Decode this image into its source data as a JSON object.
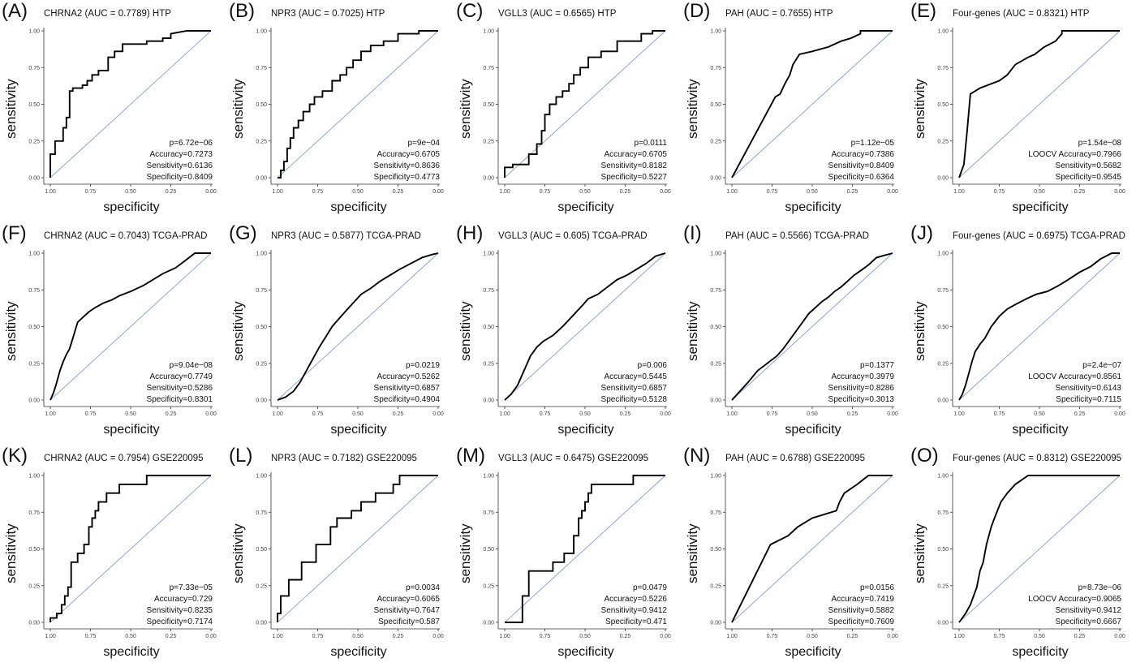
{
  "axes": {
    "xlabel": "specificity",
    "ylabel": "sensitivity",
    "xticks": [
      "1.00",
      "0.75",
      "0.50",
      "0.25",
      "0.00"
    ],
    "yticks": [
      "0.00",
      "0.25",
      "0.50",
      "0.75",
      "1.00"
    ]
  },
  "chart_data": [
    {
      "type": "line",
      "letter": "(A)",
      "title": "CHRNA2 (AUC = 0.7789) HTP",
      "xlabel": "specificity",
      "ylabel": "sensitivity",
      "xlim": [
        1,
        0
      ],
      "ylim": [
        0,
        1
      ],
      "stats": [
        "p=6.72e−06",
        "Accuracy=0.7273",
        "Sensitivity=0.6136",
        "Specificity=0.8409"
      ],
      "fpr": [
        0,
        0,
        0.03,
        0.03,
        0.08,
        0.08,
        0.1,
        0.1,
        0.12,
        0.12,
        0.14,
        0.14,
        0.2,
        0.2,
        0.23,
        0.23,
        0.26,
        0.26,
        0.3,
        0.3,
        0.36,
        0.36,
        0.4,
        0.4,
        0.45,
        0.45,
        0.6,
        0.6,
        0.7,
        0.7,
        0.75,
        0.75,
        0.85,
        1
      ],
      "tpr": [
        0,
        0.16,
        0.16,
        0.25,
        0.25,
        0.34,
        0.34,
        0.41,
        0.41,
        0.59,
        0.59,
        0.61,
        0.61,
        0.63,
        0.63,
        0.66,
        0.66,
        0.7,
        0.7,
        0.73,
        0.73,
        0.82,
        0.82,
        0.86,
        0.86,
        0.91,
        0.91,
        0.93,
        0.93,
        0.95,
        0.95,
        0.98,
        1,
        1
      ]
    },
    {
      "type": "line",
      "letter": "(B)",
      "title": "NPR3 (AUC = 0.7025) HTP",
      "xlabel": "specificity",
      "ylabel": "sensitivity",
      "xlim": [
        1,
        0
      ],
      "ylim": [
        0,
        1
      ],
      "stats": [
        "p=9e−04",
        "Accuracy=0.6705",
        "Sensitivity=0.8636",
        "Specificity=0.4773"
      ],
      "fpr": [
        0,
        0.02,
        0.02,
        0.04,
        0.04,
        0.06,
        0.06,
        0.08,
        0.08,
        0.1,
        0.1,
        0.13,
        0.13,
        0.16,
        0.16,
        0.2,
        0.2,
        0.23,
        0.23,
        0.28,
        0.28,
        0.34,
        0.34,
        0.39,
        0.39,
        0.43,
        0.43,
        0.47,
        0.47,
        0.52,
        0.52,
        0.58,
        0.58,
        0.66,
        0.66,
        0.75,
        0.75,
        0.88,
        0.88,
        1
      ],
      "tpr": [
        0,
        0,
        0.05,
        0.05,
        0.11,
        0.11,
        0.2,
        0.2,
        0.27,
        0.27,
        0.34,
        0.34,
        0.39,
        0.39,
        0.45,
        0.45,
        0.5,
        0.5,
        0.55,
        0.55,
        0.59,
        0.59,
        0.66,
        0.66,
        0.7,
        0.7,
        0.75,
        0.75,
        0.8,
        0.8,
        0.86,
        0.86,
        0.9,
        0.9,
        0.93,
        0.93,
        0.98,
        0.98,
        1,
        1
      ]
    },
    {
      "type": "line",
      "letter": "(C)",
      "title": "VGLL3 (AUC = 0.6565) HTP",
      "xlabel": "specificity",
      "ylabel": "sensitivity",
      "xlim": [
        1,
        0
      ],
      "ylim": [
        0,
        1
      ],
      "stats": [
        "p=0.0111",
        "Accuracy=0.6705",
        "Sensitivity=0.8182",
        "Specificity=0.5227"
      ],
      "fpr": [
        0,
        0,
        0.05,
        0.05,
        0.15,
        0.15,
        0.2,
        0.2,
        0.23,
        0.23,
        0.25,
        0.25,
        0.28,
        0.28,
        0.32,
        0.32,
        0.36,
        0.36,
        0.4,
        0.4,
        0.43,
        0.43,
        0.47,
        0.47,
        0.52,
        0.52,
        0.6,
        0.6,
        0.7,
        0.7,
        0.85,
        0.85,
        0.92,
        0.92,
        1
      ],
      "tpr": [
        0,
        0.07,
        0.07,
        0.09,
        0.09,
        0.16,
        0.16,
        0.23,
        0.23,
        0.32,
        0.32,
        0.43,
        0.43,
        0.5,
        0.5,
        0.55,
        0.55,
        0.59,
        0.59,
        0.64,
        0.64,
        0.7,
        0.7,
        0.75,
        0.75,
        0.82,
        0.82,
        0.86,
        0.86,
        0.93,
        0.93,
        0.98,
        0.98,
        1,
        1
      ]
    },
    {
      "type": "line",
      "letter": "(D)",
      "title": "PAH (AUC = 0.7655) HTP",
      "xlabel": "specificity",
      "ylabel": "sensitivity",
      "xlim": [
        1,
        0
      ],
      "ylim": [
        0,
        1
      ],
      "stats": [
        "p=1.12e−05",
        "Accuracy=0.7386",
        "Sensitivity=0.8409",
        "Specificity=0.6364"
      ],
      "fpr": [
        0,
        0.27,
        0.27,
        0.3,
        0.3,
        0.33,
        0.33,
        0.36,
        0.36,
        0.38,
        0.38,
        0.42,
        0.42,
        0.5,
        0.5,
        0.6,
        0.6,
        0.68,
        0.68,
        0.74,
        0.74,
        0.8,
        0.8,
        1
      ],
      "tpr": [
        0,
        0.55,
        0.55,
        0.57,
        0.57,
        0.64,
        0.64,
        0.7,
        0.7,
        0.77,
        0.77,
        0.84,
        0.84,
        0.86,
        0.86,
        0.89,
        0.89,
        0.93,
        0.93,
        0.95,
        0.95,
        0.98,
        1,
        1
      ]
    },
    {
      "type": "line",
      "letter": "(E)",
      "title": "Four-genes (AUC = 0.8321) HTP",
      "xlabel": "specificity",
      "ylabel": "sensitivity",
      "xlim": [
        1,
        0
      ],
      "ylim": [
        0,
        1
      ],
      "stats": [
        "p=1.54e−08",
        "LOOCV Accuracy=0.7966",
        "Sensitivity=0.5682",
        "Specificity=0.9545"
      ],
      "fpr": [
        0,
        0.03,
        0.03,
        0.05,
        0.05,
        0.07,
        0.07,
        0.1,
        0.1,
        0.13,
        0.13,
        0.2,
        0.2,
        0.25,
        0.25,
        0.3,
        0.3,
        0.35,
        0.35,
        0.43,
        0.43,
        0.47,
        0.47,
        0.53,
        0.53,
        0.6,
        0.6,
        0.64,
        0.64,
        1
      ],
      "tpr": [
        0,
        0.09,
        0.09,
        0.32,
        0.32,
        0.57,
        0.57,
        0.59,
        0.59,
        0.61,
        0.61,
        0.64,
        0.64,
        0.66,
        0.66,
        0.7,
        0.7,
        0.77,
        0.77,
        0.82,
        0.82,
        0.84,
        0.84,
        0.89,
        0.89,
        0.93,
        0.93,
        0.98,
        1,
        1
      ]
    },
    {
      "type": "line",
      "letter": "(F)",
      "title": "CHRNA2 (AUC = 0.7043) TCGA-PRAD",
      "xlabel": "specificity",
      "ylabel": "sensitivity",
      "xlim": [
        1,
        0
      ],
      "ylim": [
        0,
        1
      ],
      "stats": [
        "p=9.04e−08",
        "Accuracy=0.7749",
        "Sensitivity=0.5286",
        "Specificity=0.8301"
      ],
      "fpr": [
        0,
        0.02,
        0.04,
        0.06,
        0.08,
        0.1,
        0.12,
        0.14,
        0.17,
        0.2,
        0.24,
        0.28,
        0.33,
        0.38,
        0.43,
        0.5,
        0.58,
        0.64,
        0.7,
        0.78,
        0.84,
        0.9,
        1
      ],
      "tpr": [
        0,
        0.05,
        0.12,
        0.2,
        0.26,
        0.31,
        0.35,
        0.42,
        0.53,
        0.56,
        0.6,
        0.63,
        0.66,
        0.68,
        0.71,
        0.74,
        0.78,
        0.82,
        0.86,
        0.9,
        0.95,
        1,
        1
      ]
    },
    {
      "type": "line",
      "letter": "(G)",
      "title": "NPR3 (AUC = 0.5877) TCGA-PRAD",
      "xlabel": "specificity",
      "ylabel": "sensitivity",
      "xlim": [
        1,
        0
      ],
      "ylim": [
        0,
        1
      ],
      "stats": [
        "p=0.0219",
        "Accuracy=0.5262",
        "Sensitivity=0.6857",
        "Specificity=0.4904"
      ],
      "fpr": [
        0,
        0.05,
        0.1,
        0.14,
        0.18,
        0.22,
        0.26,
        0.3,
        0.34,
        0.38,
        0.42,
        0.47,
        0.52,
        0.58,
        0.64,
        0.7,
        0.76,
        0.83,
        0.9,
        0.96,
        1
      ],
      "tpr": [
        0,
        0.02,
        0.06,
        0.12,
        0.2,
        0.28,
        0.36,
        0.43,
        0.5,
        0.55,
        0.6,
        0.66,
        0.72,
        0.76,
        0.81,
        0.85,
        0.89,
        0.93,
        0.97,
        0.99,
        1
      ]
    },
    {
      "type": "line",
      "letter": "(H)",
      "title": "VGLL3 (AUC = 0.605) TCGA-PRAD",
      "xlabel": "specificity",
      "ylabel": "sensitivity",
      "xlim": [
        1,
        0
      ],
      "ylim": [
        0,
        1
      ],
      "stats": [
        "p=0.006",
        "Accuracy=0.5445",
        "Sensitivity=0.6857",
        "Specificity=0.5128"
      ],
      "fpr": [
        0,
        0.04,
        0.08,
        0.12,
        0.16,
        0.2,
        0.24,
        0.3,
        0.36,
        0.42,
        0.48,
        0.52,
        0.58,
        0.64,
        0.7,
        0.76,
        0.82,
        0.88,
        0.94,
        1
      ],
      "tpr": [
        0,
        0.04,
        0.1,
        0.2,
        0.3,
        0.36,
        0.4,
        0.44,
        0.5,
        0.57,
        0.64,
        0.69,
        0.72,
        0.77,
        0.82,
        0.85,
        0.89,
        0.93,
        0.98,
        1
      ]
    },
    {
      "type": "line",
      "letter": "(I)",
      "title": "PAH (AUC = 0.5566) TCGA-PRAD",
      "xlabel": "specificity",
      "ylabel": "sensitivity",
      "xlim": [
        1,
        0
      ],
      "ylim": [
        0,
        1
      ],
      "stats": [
        "p=0.1377",
        "Accuracy=0.3979",
        "Sensitivity=0.8286",
        "Specificity=0.3013"
      ],
      "fpr": [
        0,
        0.1,
        0.16,
        0.22,
        0.28,
        0.32,
        0.36,
        0.4,
        0.44,
        0.48,
        0.52,
        0.56,
        0.6,
        0.64,
        0.68,
        0.72,
        0.76,
        0.8,
        0.85,
        0.9,
        1
      ],
      "tpr": [
        0,
        0.12,
        0.2,
        0.25,
        0.3,
        0.35,
        0.41,
        0.47,
        0.53,
        0.59,
        0.63,
        0.67,
        0.7,
        0.74,
        0.77,
        0.81,
        0.85,
        0.88,
        0.92,
        0.97,
        1
      ]
    },
    {
      "type": "line",
      "letter": "(J)",
      "title": "Four-genes (AUC = 0.6975) TCGA-PRAD",
      "xlabel": "specificity",
      "ylabel": "sensitivity",
      "xlim": [
        1,
        0
      ],
      "ylim": [
        0,
        1
      ],
      "stats": [
        "p=2.4e−07",
        "LOOCV Accuracy=0.8561",
        "Sensitivity=0.6143",
        "Specificity=0.7115"
      ],
      "fpr": [
        0,
        0.02,
        0.04,
        0.06,
        0.08,
        0.1,
        0.13,
        0.16,
        0.2,
        0.25,
        0.3,
        0.35,
        0.42,
        0.48,
        0.55,
        0.62,
        0.68,
        0.75,
        0.82,
        0.88,
        0.95,
        1
      ],
      "tpr": [
        0,
        0.04,
        0.1,
        0.18,
        0.26,
        0.33,
        0.38,
        0.42,
        0.5,
        0.57,
        0.62,
        0.65,
        0.69,
        0.72,
        0.74,
        0.78,
        0.82,
        0.87,
        0.91,
        0.96,
        1,
        1
      ]
    },
    {
      "type": "line",
      "letter": "(K)",
      "title": "CHRNA2 (AUC = 0.7954) GSE220095",
      "xlabel": "specificity",
      "ylabel": "sensitivity",
      "xlim": [
        1,
        0
      ],
      "ylim": [
        0,
        1
      ],
      "stats": [
        "p=7.33e−05",
        "Accuracy=0.729",
        "Sensitivity=0.8235",
        "Specificity=0.7174"
      ],
      "fpr": [
        0,
        0,
        0.04,
        0.04,
        0.07,
        0.07,
        0.09,
        0.09,
        0.11,
        0.11,
        0.13,
        0.13,
        0.17,
        0.17,
        0.21,
        0.21,
        0.24,
        0.24,
        0.26,
        0.26,
        0.28,
        0.28,
        0.3,
        0.3,
        0.35,
        0.35,
        0.43,
        0.43,
        0.5,
        0.5,
        0.6,
        0.6,
        1
      ],
      "tpr": [
        0,
        0.03,
        0.03,
        0.06,
        0.06,
        0.12,
        0.12,
        0.18,
        0.18,
        0.24,
        0.24,
        0.41,
        0.41,
        0.47,
        0.47,
        0.53,
        0.53,
        0.65,
        0.65,
        0.71,
        0.71,
        0.76,
        0.76,
        0.82,
        0.82,
        0.88,
        0.88,
        0.94,
        0.94,
        0.94,
        0.94,
        1,
        1
      ]
    },
    {
      "type": "line",
      "letter": "(L)",
      "title": "NPR3 (AUC = 0.7182) GSE220095",
      "xlabel": "specificity",
      "ylabel": "sensitivity",
      "xlim": [
        1,
        0
      ],
      "ylim": [
        0,
        1
      ],
      "stats": [
        "p=0.0034",
        "Accuracy=0.6065",
        "Sensitivity=0.7647",
        "Specificity=0.587"
      ],
      "fpr": [
        0,
        0,
        0.02,
        0.02,
        0.07,
        0.07,
        0.15,
        0.15,
        0.24,
        0.24,
        0.33,
        0.33,
        0.37,
        0.37,
        0.46,
        0.46,
        0.52,
        0.52,
        0.61,
        0.61,
        0.72,
        0.72,
        0.76,
        0.76,
        1
      ],
      "tpr": [
        0,
        0.06,
        0.06,
        0.18,
        0.18,
        0.29,
        0.29,
        0.41,
        0.41,
        0.53,
        0.53,
        0.65,
        0.65,
        0.71,
        0.71,
        0.76,
        0.76,
        0.82,
        0.82,
        0.88,
        0.88,
        0.94,
        0.94,
        1,
        1
      ]
    },
    {
      "type": "line",
      "letter": "(M)",
      "title": "VGLL3 (AUC = 0.6475) GSE220095",
      "xlabel": "specificity",
      "ylabel": "sensitivity",
      "xlim": [
        1,
        0
      ],
      "ylim": [
        0,
        1
      ],
      "stats": [
        "p=0.0479",
        "Accuracy=0.5226",
        "Sensitivity=0.9412",
        "Specificity=0.471"
      ],
      "fpr": [
        0,
        0.11,
        0.11,
        0.15,
        0.15,
        0.17,
        0.17,
        0.3,
        0.3,
        0.37,
        0.37,
        0.43,
        0.43,
        0.46,
        0.46,
        0.48,
        0.48,
        0.5,
        0.5,
        0.52,
        0.52,
        0.54,
        0.54,
        0.8,
        0.8,
        1
      ],
      "tpr": [
        0,
        0,
        0.18,
        0.18,
        0.35,
        0.35,
        0.35,
        0.35,
        0.41,
        0.41,
        0.47,
        0.47,
        0.59,
        0.59,
        0.71,
        0.71,
        0.76,
        0.76,
        0.82,
        0.82,
        0.88,
        0.88,
        0.94,
        0.94,
        1,
        1
      ]
    },
    {
      "type": "line",
      "letter": "(N)",
      "title": "PAH (AUC = 0.6788) GSE220095",
      "xlabel": "specificity",
      "ylabel": "sensitivity",
      "xlim": [
        1,
        0
      ],
      "ylim": [
        0,
        1
      ],
      "stats": [
        "p=0.0156",
        "Accuracy=0.7419",
        "Sensitivity=0.5882",
        "Specificity=0.7609"
      ],
      "fpr": [
        0,
        0.24,
        0.24,
        0.35,
        0.35,
        0.41,
        0.41,
        0.5,
        0.5,
        0.65,
        0.65,
        0.67,
        0.67,
        0.7,
        0.7,
        0.78,
        0.78,
        0.85,
        0.85,
        1
      ],
      "tpr": [
        0,
        0.53,
        0.53,
        0.59,
        0.59,
        0.65,
        0.65,
        0.71,
        0.71,
        0.76,
        0.76,
        0.82,
        0.82,
        0.88,
        0.88,
        0.94,
        0.94,
        1,
        1,
        1
      ]
    },
    {
      "type": "line",
      "letter": "(O)",
      "title": "Four-genes (AUC = 0.8312) GSE220095",
      "xlabel": "specificity",
      "ylabel": "sensitivity",
      "xlim": [
        1,
        0
      ],
      "ylim": [
        0,
        1
      ],
      "stats": [
        "p=8.73e−06",
        "LOOCV Accuracy=0.9065",
        "Sensitivity=0.9412",
        "Specificity=0.6667"
      ],
      "fpr": [
        0,
        0.04,
        0.04,
        0.07,
        0.07,
        0.11,
        0.11,
        0.13,
        0.13,
        0.15,
        0.15,
        0.17,
        0.17,
        0.2,
        0.2,
        0.22,
        0.22,
        0.26,
        0.26,
        0.3,
        0.3,
        0.35,
        0.35,
        0.43,
        0.43,
        1
      ],
      "tpr": [
        0,
        0.06,
        0.06,
        0.12,
        0.12,
        0.24,
        0.24,
        0.35,
        0.35,
        0.41,
        0.41,
        0.53,
        0.53,
        0.65,
        0.65,
        0.71,
        0.71,
        0.82,
        0.82,
        0.88,
        0.88,
        0.94,
        0.94,
        1,
        1,
        1
      ]
    }
  ]
}
